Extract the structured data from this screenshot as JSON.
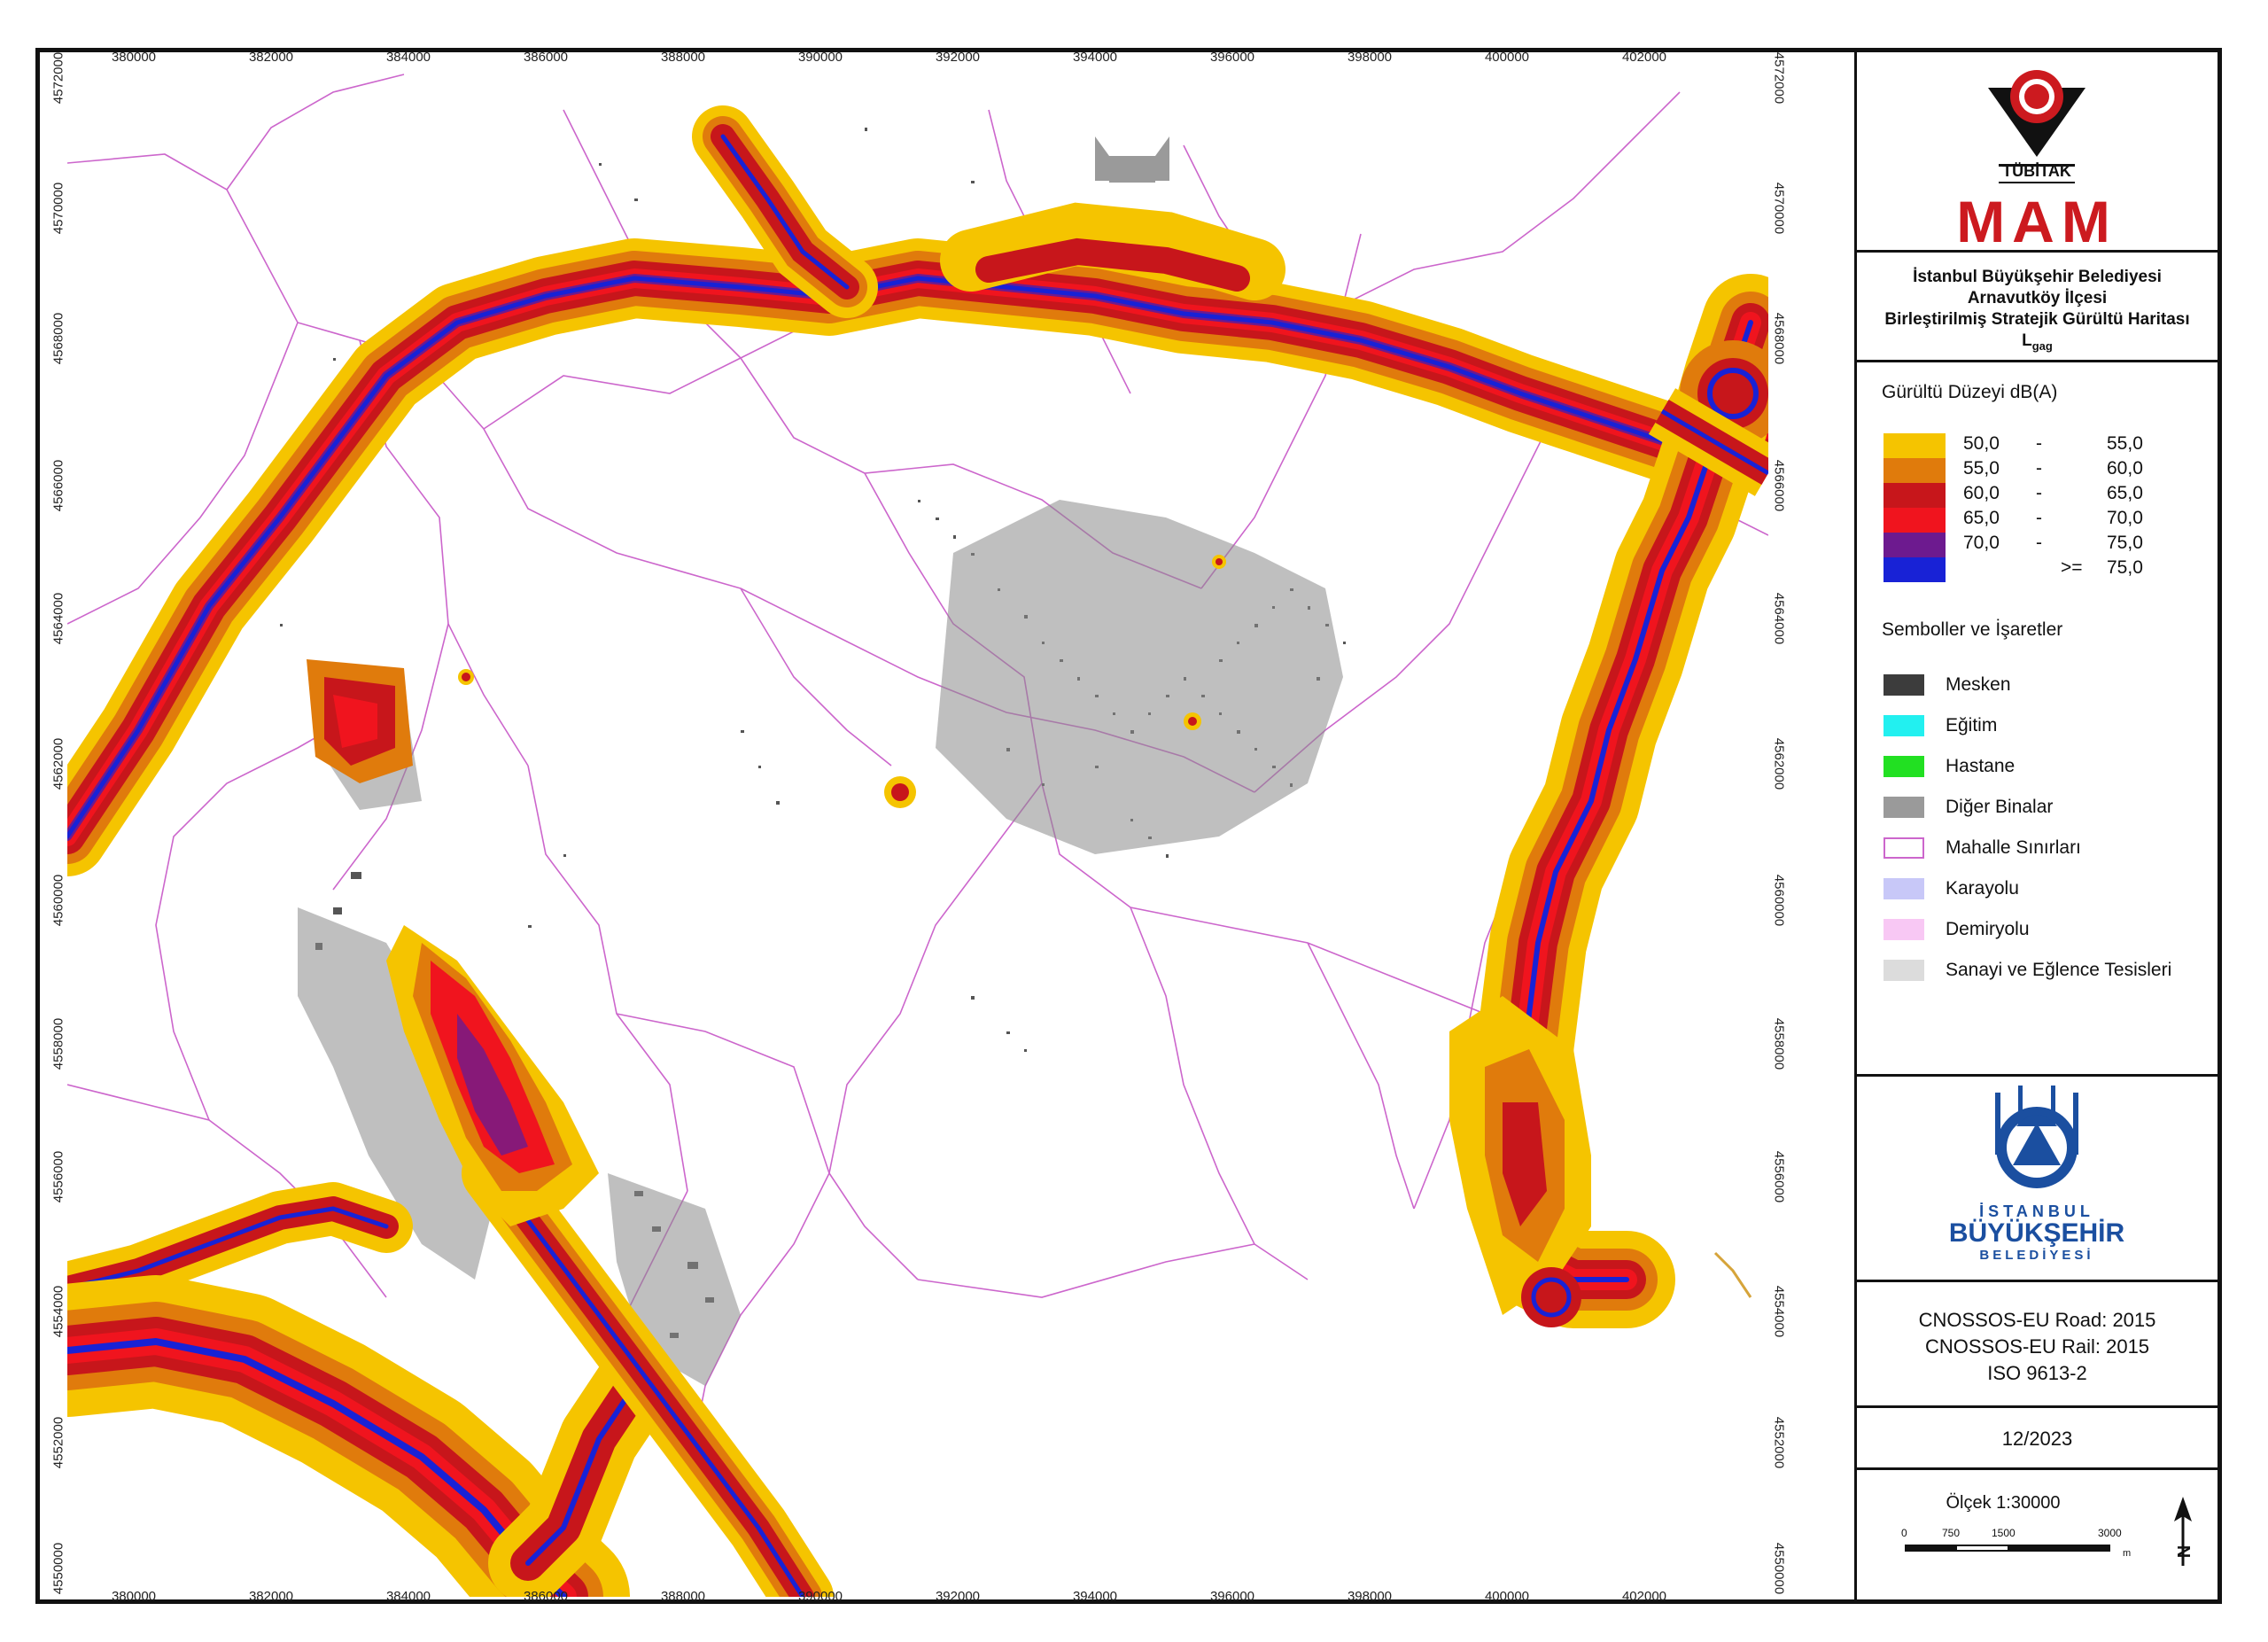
{
  "map": {
    "x_ticks": [
      "380000",
      "382000",
      "384000",
      "386000",
      "388000",
      "390000",
      "392000",
      "394000",
      "396000",
      "398000",
      "400000",
      "402000"
    ],
    "y_ticks": [
      "4572000",
      "4570000",
      "4568000",
      "4566000",
      "4564000",
      "4562000",
      "4560000",
      "4558000",
      "4556000",
      "4554000",
      "4552000",
      "4550000"
    ],
    "colors": {
      "noise_50_55": "#f5c400",
      "noise_55_60": "#e07b0c",
      "noise_60_65": "#c7161b",
      "noise_65_70": "#f0141e",
      "noise_70_75": "#6d1a8f",
      "noise_75_plus": "#1822d6",
      "boundary": "#cc66cc",
      "building": "#444444"
    }
  },
  "panel": {
    "logo": {
      "tubitak": "TÜBİTAK",
      "mam": "MAM"
    },
    "title": {
      "line1": "İstanbul Büyükşehir Belediyesi",
      "line2": "Arnavutköy İlçesi",
      "line3": "Birleştirilmiş Stratejik Gürültü Haritası",
      "line4_main": "L",
      "line4_sub": "gag"
    },
    "legend": {
      "heading": "Gürültü Düzeyi dB(A)",
      "items": [
        {
          "from": "50,0",
          "sep": "-",
          "to": "55,0",
          "color": "#f5c400"
        },
        {
          "from": "55,0",
          "sep": "-",
          "to": "60,0",
          "color": "#e07b0c"
        },
        {
          "from": "60,0",
          "sep": "-",
          "to": "65,0",
          "color": "#c7161b"
        },
        {
          "from": "65,0",
          "sep": "-",
          "to": "70,0",
          "color": "#f0141e"
        },
        {
          "from": "70,0",
          "sep": "-",
          "to": "75,0",
          "color": "#6d1a8f"
        },
        {
          "from": "",
          "sep": ">=",
          "to": "75,0",
          "color": "#1822d6"
        }
      ]
    },
    "symbols": {
      "heading": "Semboller ve İşaretler",
      "items": [
        {
          "label": "Mesken",
          "color": "#3c3c3c",
          "border": "#3c3c3c"
        },
        {
          "label": "Eğitim",
          "color": "#22f0f0",
          "border": "#22f0f0"
        },
        {
          "label": "Hastane",
          "color": "#22e022",
          "border": "#22e022"
        },
        {
          "label": "Diğer Binalar",
          "color": "#9a9a9a",
          "border": "#9a9a9a"
        },
        {
          "label": "Mahalle Sınırları",
          "color": "#ffffff",
          "border": "#cc66cc"
        },
        {
          "label": "Karayolu",
          "color": "#c8c8f8",
          "border": "#c8c8f8"
        },
        {
          "label": "Demiryolu",
          "color": "#f8c8f4",
          "border": "#f8c8f4"
        },
        {
          "label": "Sanayi ve Eğlence Tesisleri",
          "color": "#dcdcdc",
          "border": "#dcdcdc"
        }
      ]
    },
    "ibb_logo": {
      "line1": "İSTANBUL",
      "line2": "BÜYÜKŞEHİR",
      "line3": "BELEDİYESİ"
    },
    "methods": {
      "line1": "CNOSSOS-EU Road: 2015",
      "line2": "CNOSSOS-EU Rail: 2015",
      "line3": "ISO 9613-2"
    },
    "date": "12/2023",
    "scale": {
      "label": "Ölçek 1:30000",
      "ticks": [
        "0",
        "750",
        "1500",
        "3000"
      ],
      "unit": "m",
      "north": "N"
    }
  }
}
